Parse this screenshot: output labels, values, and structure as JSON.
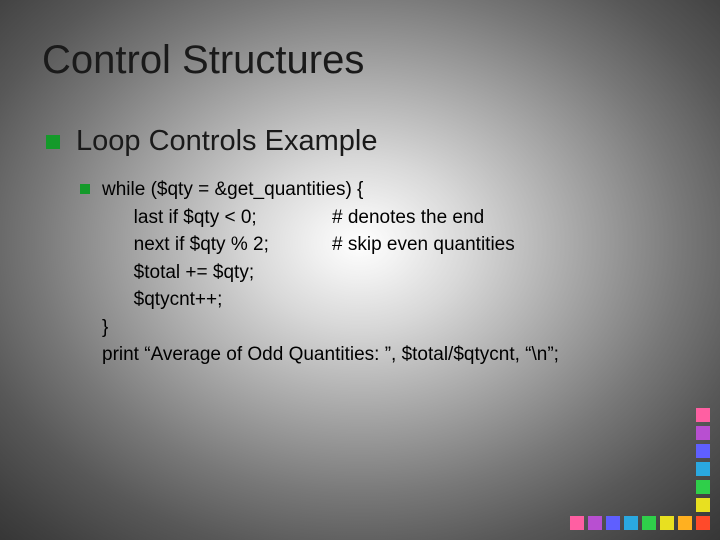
{
  "title": "Control Structures",
  "subtitle": "Loop Controls Example",
  "code": {
    "line1": "while ($qty = &get_quantities) {",
    "line2a": "      last if $qty < 0;",
    "line2b": "# denotes the end",
    "line3a": "      next if $qty % 2;",
    "line3b": "# skip even quantities",
    "line4": "      $total += $qty;",
    "line5": "      $qtycnt++;",
    "line6": "}",
    "line7": "print “Average of Odd Quantities: ”, $total/$qtycnt, “\\n”;"
  },
  "styling": {
    "slide_width": 720,
    "slide_height": 540,
    "title_fontsize": 40,
    "subtitle_fontsize": 29,
    "code_fontsize": 19,
    "bullet_color": "#149a2a",
    "title_color": "#1a1a1a",
    "code_color": "#000000",
    "comment_col_gap": 230,
    "decor_square_size": 14,
    "decor_square_gap": 4
  },
  "decor": {
    "vertical_colors": [
      "#ff5fa2",
      "#b84fd1",
      "#5f5fff",
      "#2aa8e0",
      "#2fcf4a",
      "#e8e020"
    ],
    "horizontal_colors": [
      "#ff5fa2",
      "#b84fd1",
      "#5f5fff",
      "#2aa8e0",
      "#2fcf4a",
      "#e8e020",
      "#ffb020",
      "#ff4a2a"
    ]
  }
}
